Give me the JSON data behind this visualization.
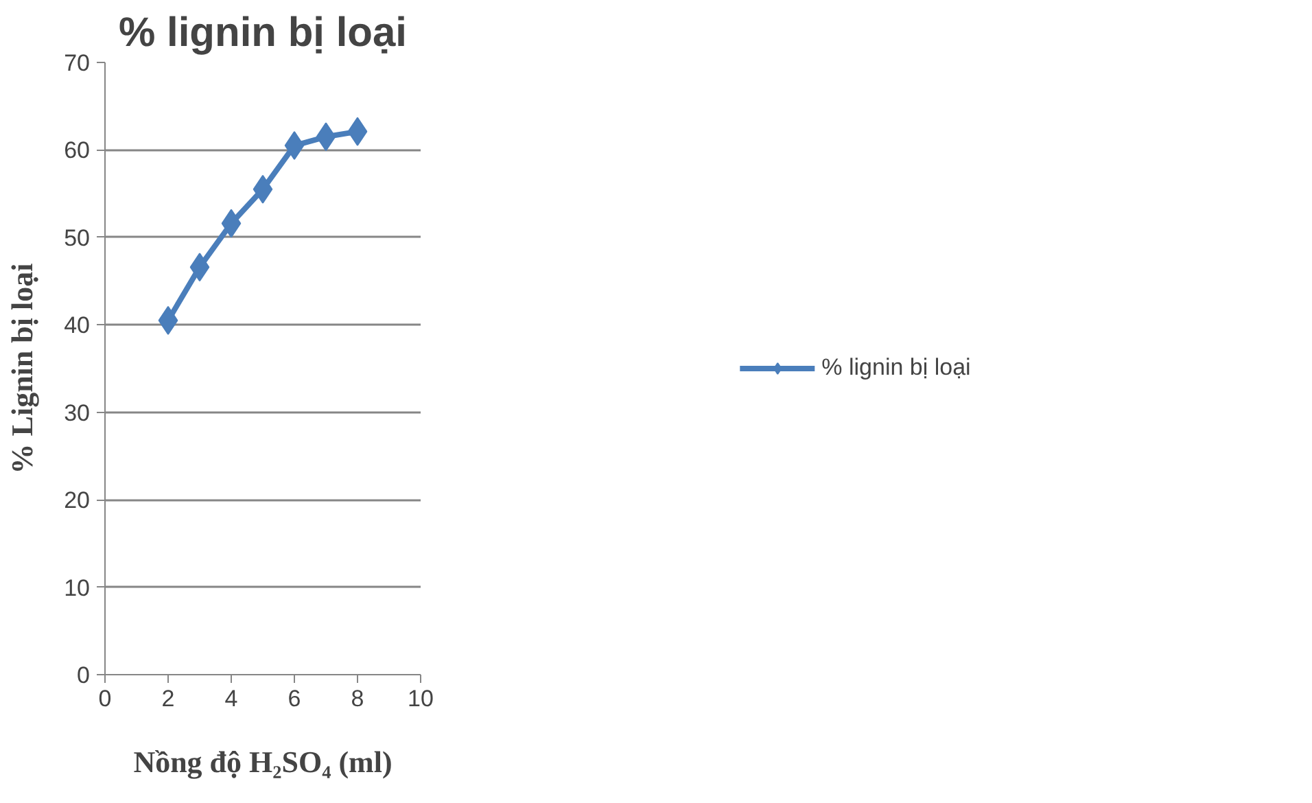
{
  "chart_data": {
    "type": "line",
    "title": "% lignin bị loại",
    "xlabel": "Nồng độ H₂SO₄ (ml)",
    "ylabel": "% Lignin bị loại",
    "x": [
      2,
      3,
      4,
      5,
      6,
      7,
      8
    ],
    "series": [
      {
        "name": "% lignin bị loại",
        "color": "#4a7ebb",
        "values": [
          40.5,
          46.6,
          51.6,
          55.5,
          60.5,
          61.5,
          62.1
        ]
      }
    ],
    "xlim": [
      0,
      10
    ],
    "xticks": [
      0,
      2,
      4,
      6,
      8,
      10
    ],
    "ylim": [
      0,
      70
    ],
    "yticks": [
      0,
      10,
      20,
      30,
      40,
      50,
      60,
      70
    ],
    "grid": "y",
    "legend": "right",
    "marker": "diamond",
    "line_style": "solid"
  }
}
